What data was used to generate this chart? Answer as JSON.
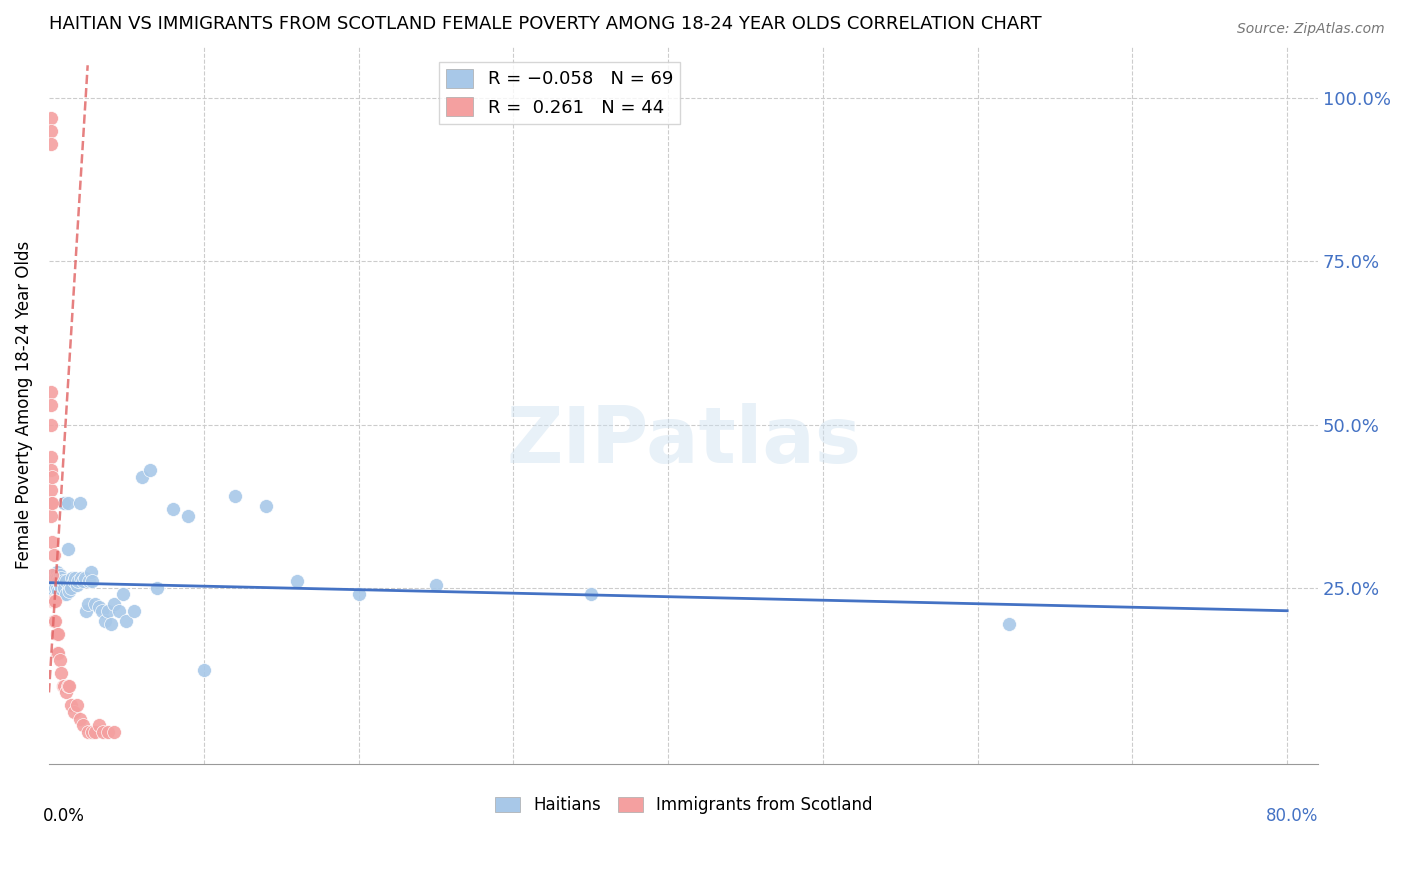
{
  "title": "HAITIAN VS IMMIGRANTS FROM SCOTLAND FEMALE POVERTY AMONG 18-24 YEAR OLDS CORRELATION CHART",
  "source": "Source: ZipAtlas.com",
  "ylabel": "Female Poverty Among 18-24 Year Olds",
  "ytick_labels": [
    "100.0%",
    "75.0%",
    "50.0%",
    "25.0%"
  ],
  "ytick_values": [
    1.0,
    0.75,
    0.5,
    0.25
  ],
  "xlim": [
    0.0,
    0.82
  ],
  "ylim": [
    -0.02,
    1.08
  ],
  "watermark": "ZIPatlas",
  "blue_color": "#a8c8e8",
  "pink_color": "#f4a0a0",
  "blue_line_color": "#4472c4",
  "pink_line_color": "#e06060",
  "haitians_x": [
    0.001,
    0.002,
    0.002,
    0.002,
    0.003,
    0.003,
    0.003,
    0.003,
    0.004,
    0.004,
    0.004,
    0.005,
    0.005,
    0.005,
    0.006,
    0.006,
    0.007,
    0.007,
    0.008,
    0.008,
    0.009,
    0.009,
    0.01,
    0.01,
    0.011,
    0.011,
    0.012,
    0.012,
    0.013,
    0.013,
    0.014,
    0.015,
    0.016,
    0.017,
    0.018,
    0.019,
    0.02,
    0.021,
    0.022,
    0.023,
    0.024,
    0.025,
    0.026,
    0.027,
    0.028,
    0.03,
    0.032,
    0.034,
    0.036,
    0.038,
    0.04,
    0.042,
    0.045,
    0.048,
    0.05,
    0.055,
    0.06,
    0.065,
    0.07,
    0.08,
    0.09,
    0.1,
    0.12,
    0.14,
    0.16,
    0.2,
    0.25,
    0.35,
    0.62
  ],
  "haitians_y": [
    0.26,
    0.25,
    0.27,
    0.24,
    0.26,
    0.255,
    0.24,
    0.23,
    0.265,
    0.25,
    0.235,
    0.275,
    0.265,
    0.25,
    0.26,
    0.245,
    0.27,
    0.255,
    0.265,
    0.25,
    0.26,
    0.24,
    0.38,
    0.25,
    0.26,
    0.24,
    0.38,
    0.31,
    0.25,
    0.245,
    0.25,
    0.265,
    0.26,
    0.265,
    0.255,
    0.26,
    0.38,
    0.265,
    0.26,
    0.265,
    0.215,
    0.225,
    0.26,
    0.275,
    0.26,
    0.225,
    0.22,
    0.215,
    0.2,
    0.215,
    0.195,
    0.225,
    0.215,
    0.24,
    0.2,
    0.215,
    0.42,
    0.43,
    0.25,
    0.37,
    0.36,
    0.125,
    0.39,
    0.375,
    0.26,
    0.24,
    0.255,
    0.24,
    0.195
  ],
  "scotland_x": [
    0.001,
    0.001,
    0.001,
    0.001,
    0.001,
    0.001,
    0.001,
    0.001,
    0.001,
    0.001,
    0.001,
    0.002,
    0.002,
    0.002,
    0.002,
    0.002,
    0.003,
    0.003,
    0.003,
    0.004,
    0.004,
    0.005,
    0.005,
    0.006,
    0.006,
    0.007,
    0.008,
    0.009,
    0.01,
    0.011,
    0.012,
    0.013,
    0.014,
    0.016,
    0.018,
    0.02,
    0.022,
    0.025,
    0.028,
    0.03,
    0.032,
    0.035,
    0.038,
    0.042
  ],
  "scotland_y": [
    0.97,
    0.95,
    0.93,
    0.55,
    0.53,
    0.5,
    0.45,
    0.43,
    0.4,
    0.38,
    0.36,
    0.42,
    0.38,
    0.32,
    0.27,
    0.23,
    0.3,
    0.23,
    0.2,
    0.23,
    0.2,
    0.18,
    0.15,
    0.18,
    0.15,
    0.14,
    0.12,
    0.1,
    0.1,
    0.09,
    0.1,
    0.1,
    0.07,
    0.06,
    0.07,
    0.05,
    0.04,
    0.03,
    0.03,
    0.03,
    0.04,
    0.03,
    0.03,
    0.03
  ],
  "blue_trend_x": [
    0.0,
    0.8
  ],
  "blue_trend_y": [
    0.258,
    0.215
  ],
  "pink_trend_x": [
    0.0,
    0.025
  ],
  "pink_trend_y": [
    0.09,
    1.05
  ]
}
